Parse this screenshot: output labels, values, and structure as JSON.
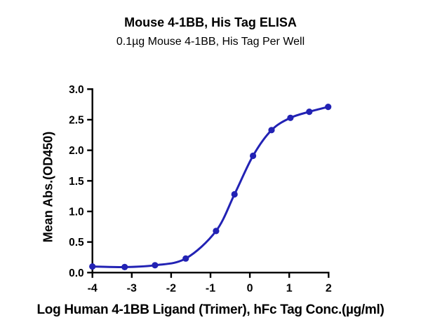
{
  "figure": {
    "background": "#ffffff",
    "text_color": "#000000"
  },
  "chart_data": {
    "type": "line",
    "title": "Mouse 4-1BB, His Tag ELISA",
    "subtitle": "0.1µg Mouse 4-1BB, His Tag Per Well",
    "xlabel": "Log Human 4-1BB Ligand (Trimer), hFc Tag Conc.(µg/ml)",
    "ylabel": "Mean Abs.(OD450)",
    "xlim": [
      -4,
      2
    ],
    "ylim": [
      0,
      3
    ],
    "xticks": [
      -4,
      -3,
      -2,
      -1,
      0,
      1,
      2
    ],
    "yticks": [
      "0.0",
      "0.5",
      "1.0",
      "1.5",
      "2.0",
      "2.5",
      "3.0"
    ],
    "grid": false,
    "legend": "none",
    "curve_style": "smooth-sigmoid-fit",
    "series": [
      {
        "color": "#2222b4",
        "marker": "circle",
        "x": [
          -4.0,
          -3.18,
          -2.41,
          -1.63,
          -0.86,
          -0.39,
          0.08,
          0.55,
          1.03,
          1.51,
          1.99
        ],
        "y": [
          0.1,
          0.09,
          0.12,
          0.23,
          0.68,
          1.28,
          1.91,
          2.33,
          2.53,
          2.63,
          2.71
        ]
      }
    ]
  }
}
